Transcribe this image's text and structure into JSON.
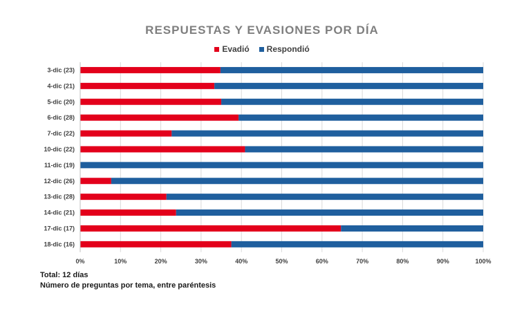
{
  "chart_data": {
    "type": "bar",
    "orientation": "horizontal",
    "stacked": "percent",
    "title": "RESPUESTAS Y EVASIONES POR DÍA",
    "categories": [
      "3-dic (23)",
      "4-dic (21)",
      "5-dic (20)",
      "6-dic (28)",
      "7-dic (22)",
      "10-dic (22)",
      "11-dic (19)",
      "12-dic (26)",
      "13-dic (28)",
      "14-dic (21)",
      "17-dic (17)",
      "18-dic (16)"
    ],
    "series": [
      {
        "name": "Evadió",
        "color": "#e3001b",
        "values": [
          34.8,
          33.3,
          35.0,
          39.3,
          22.7,
          40.9,
          0.0,
          7.7,
          21.4,
          23.8,
          64.7,
          37.5
        ]
      },
      {
        "name": "Respondió",
        "color": "#1f5f9e",
        "values": [
          65.2,
          66.7,
          65.0,
          60.7,
          77.3,
          59.1,
          100.0,
          92.3,
          78.6,
          76.2,
          35.3,
          62.5
        ]
      }
    ],
    "xlim": [
      0,
      100
    ],
    "xticks": [
      "0%",
      "10%",
      "20%",
      "30%",
      "40%",
      "50%",
      "60%",
      "70%",
      "80%",
      "90%",
      "100%"
    ],
    "grid": true,
    "legend_position": "top"
  },
  "footnotes": {
    "total": "Total:  12 días",
    "note": "Número de preguntas  por tema, entre paréntesis"
  }
}
